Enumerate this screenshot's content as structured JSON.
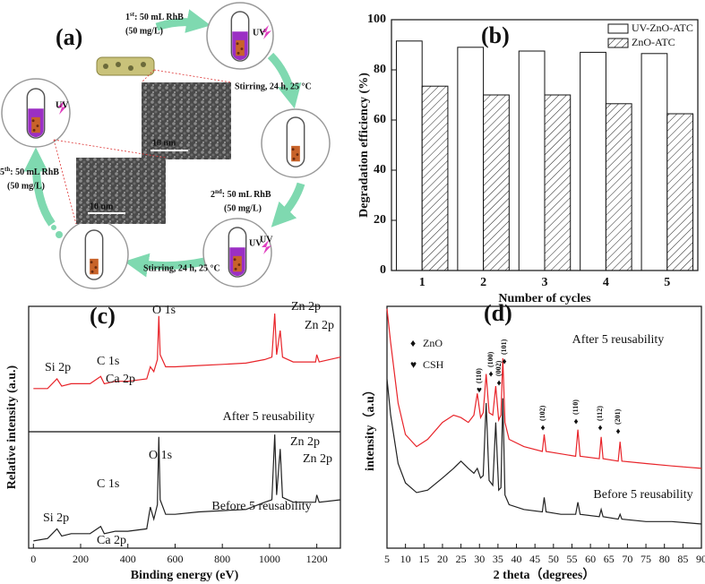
{
  "diagram": {
    "label": "(a)",
    "feeds": [
      {
        "ordinal": "1",
        "suffix": "st",
        "text": ": 50 mL RhB",
        "conc": "(50 mg/L)"
      },
      {
        "ordinal": "2",
        "suffix": "nd",
        "text": ": 50 mL RhB",
        "conc": "(50 mg/L)"
      },
      {
        "ordinal": "5",
        "suffix": "th",
        "text": ": 50 mL RhB",
        "conc": "(50 mg/L)"
      }
    ],
    "uv_labels": [
      "UV",
      "UV",
      "UV",
      "UV"
    ],
    "stirring": [
      "Stirring, 24 h,  25 °C",
      "Stirring, 24 h,  25 °C"
    ],
    "scale_bars": [
      "10 um",
      "10 um"
    ]
  },
  "chart_data": [
    {
      "type": "bar",
      "label": "(b)",
      "categories": [
        "1",
        "2",
        "3",
        "4",
        "5"
      ],
      "series": [
        {
          "name": "UV-ZnO-ATC",
          "color": "#ffffff",
          "hatch": false,
          "values": [
            91.5,
            89,
            87.5,
            87,
            86.5
          ]
        },
        {
          "name": "ZnO-ATC",
          "color": "#ffffff",
          "hatch": true,
          "values": [
            73.5,
            70,
            70,
            66.5,
            62.5
          ]
        }
      ],
      "ylim": [
        0,
        100
      ],
      "yticks": [
        0,
        20,
        40,
        60,
        80,
        100
      ],
      "xlabel": "Number of cycles",
      "ylabel": "Degradation efficiency (%)",
      "legend": "upper right"
    },
    {
      "type": "line",
      "label": "(c)",
      "x": [
        0,
        60,
        100,
        120,
        160,
        240,
        285,
        300,
        347,
        400,
        480,
        495,
        510,
        525,
        531,
        537,
        560,
        600,
        700,
        800,
        900,
        980,
        1010,
        1022,
        1030,
        1045,
        1055,
        1100,
        1195,
        1200,
        1210,
        1300
      ],
      "series": [
        {
          "name": "After 5 reusability",
          "color": "#e8242a",
          "values": [
            66,
            66,
            70,
            67,
            68,
            68,
            71,
            68,
            69,
            69,
            70,
            75,
            73,
            78,
            96,
            80,
            75,
            75,
            75.5,
            76,
            76.5,
            78,
            79,
            97,
            80,
            90,
            79,
            77,
            77,
            80,
            77,
            79
          ],
          "annotations": [
            "Si 2p",
            "C 1s",
            "Ca 2p",
            "O 1s",
            "Zn 2p",
            "Zn 2p"
          ]
        },
        {
          "name": "Before 5 reusability",
          "color": "#222222",
          "values": [
            3,
            4,
            8,
            5,
            6,
            6,
            9,
            6,
            7,
            7,
            8,
            17,
            12,
            18,
            46,
            20,
            14,
            14,
            15,
            15.5,
            16,
            19,
            20,
            47,
            22,
            41,
            21,
            19,
            19,
            22,
            19,
            20
          ],
          "annotations": [
            "Si 2p",
            "C 1s",
            "Ca 2p",
            "O 1s",
            "Zn 2p",
            "Zn 2p"
          ]
        }
      ],
      "xlim": [
        -20,
        1300
      ],
      "xticks": [
        0,
        200,
        400,
        600,
        800,
        1000,
        1200
      ],
      "ylim": [
        0,
        100
      ],
      "xlabel": "Binding energy (eV)",
      "ylabel": "Relative intensity (a.u.)"
    },
    {
      "type": "line",
      "label": "(d)",
      "x": [
        5,
        6,
        8,
        10,
        13,
        16,
        20,
        23,
        25,
        27,
        28.5,
        29.4,
        30.3,
        31,
        31.8,
        32.6,
        33.6,
        34.4,
        35.2,
        35.8,
        36.3,
        36.9,
        38,
        42,
        47,
        47.5,
        48,
        52,
        56,
        56.6,
        57.2,
        62.4,
        62.9,
        63.4,
        67.5,
        68,
        68.5,
        75,
        82,
        90
      ],
      "series": [
        {
          "name": "After 5 reusability",
          "color": "#e8242a",
          "values": [
            99,
            85,
            60,
            47,
            42,
            45,
            52,
            55,
            54,
            52,
            55,
            64,
            54,
            56,
            72,
            56,
            55,
            67,
            53,
            55,
            78.5,
            52,
            45,
            42,
            40,
            47,
            40,
            39,
            38,
            49,
            38,
            37,
            46,
            37,
            36,
            44,
            36,
            35,
            34,
            33
          ]
        },
        {
          "name": "Before 5 reusability",
          "color": "#222222",
          "values": [
            70,
            55,
            35,
            27,
            23,
            24,
            29,
            33,
            36,
            33,
            31,
            33,
            29,
            30,
            60,
            28,
            26,
            52,
            24,
            25,
            62,
            22,
            18,
            16,
            15,
            21,
            15,
            14,
            14,
            19,
            14,
            13,
            16,
            13,
            12,
            14,
            12,
            11,
            11,
            10
          ]
        }
      ],
      "legend_items": [
        {
          "marker": "♦",
          "label": "ZnO"
        },
        {
          "marker": "♥",
          "label": "CSH"
        }
      ],
      "peak_labels": [
        {
          "marker": "♥",
          "label": "(110)"
        },
        {
          "marker": "♦",
          "label": "(100)"
        },
        {
          "marker": "♦",
          "label": "(002)"
        },
        {
          "marker": "♦",
          "label": "(101)"
        },
        {
          "marker": "♦",
          "label": "(102)"
        },
        {
          "marker": "♦",
          "label": "(110)"
        },
        {
          "marker": "♦",
          "label": "(112)"
        },
        {
          "marker": "♦",
          "label": "(201)"
        }
      ],
      "xlim": [
        5,
        90
      ],
      "xticks": [
        5,
        10,
        15,
        20,
        25,
        30,
        35,
        40,
        45,
        50,
        55,
        60,
        65,
        70,
        75,
        80,
        85,
        90
      ],
      "ylim": [
        0,
        100
      ],
      "xlabel": "2 theta（degrees）",
      "ylabel": "intensity（a.u）"
    }
  ]
}
